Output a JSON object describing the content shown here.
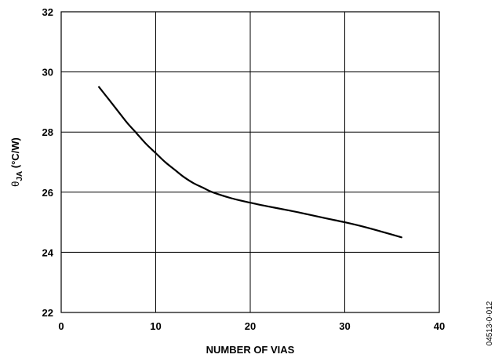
{
  "chart_data": {
    "type": "line",
    "title": "",
    "xlabel": "NUMBER OF VIAS",
    "ylabel_main": "θ",
    "ylabel_sub": "JA",
    "ylabel_unit": " (°C/W)",
    "xlim": [
      0,
      40
    ],
    "ylim": [
      22,
      32
    ],
    "xticks": [
      0,
      10,
      20,
      30,
      40
    ],
    "yticks": [
      22,
      24,
      26,
      28,
      30,
      32
    ],
    "grid": true,
    "legend": "none",
    "series": [
      {
        "x": [
          4,
          5,
          6,
          7,
          8,
          9,
          10,
          11,
          12,
          13,
          14,
          15,
          16,
          18,
          20,
          22,
          24,
          26,
          28,
          30,
          32,
          34,
          36
        ],
        "y": [
          29.5,
          29.1,
          28.7,
          28.3,
          27.95,
          27.6,
          27.3,
          27.0,
          26.75,
          26.5,
          26.3,
          26.15,
          26.0,
          25.8,
          25.65,
          25.52,
          25.4,
          25.27,
          25.13,
          25.0,
          24.85,
          24.68,
          24.5
        ],
        "color": "#000000"
      }
    ],
    "figure_id": "04513-0-012"
  }
}
